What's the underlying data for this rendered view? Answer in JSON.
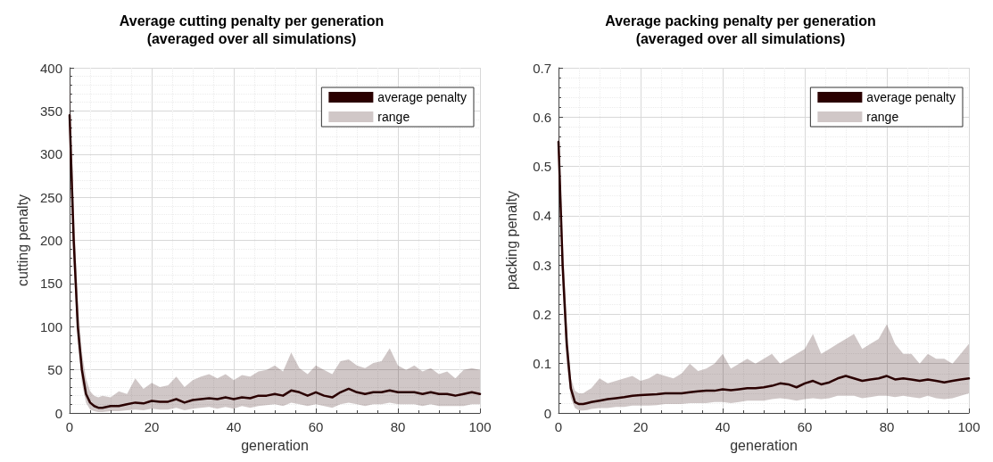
{
  "chart_data": [
    {
      "type": "line",
      "title": "Average cutting penalty per generation\n(averaged over all simulations)",
      "xlabel": "generation",
      "ylabel": "cutting penalty",
      "xlim": [
        0,
        100
      ],
      "xticks": [
        0,
        20,
        40,
        60,
        80,
        100
      ],
      "ylim": [
        0,
        400
      ],
      "yticks": [
        0,
        50,
        100,
        150,
        200,
        250,
        300,
        350,
        400
      ],
      "grid": true,
      "legend": "top right",
      "line_style": "solid",
      "marker": "none",
      "annotations": [
        "range"
      ],
      "x": [
        0,
        1,
        2,
        3,
        4,
        5,
        6,
        7,
        8,
        10,
        12,
        14,
        16,
        18,
        20,
        22,
        24,
        26,
        28,
        30,
        32,
        34,
        36,
        38,
        40,
        42,
        44,
        46,
        48,
        50,
        52,
        54,
        56,
        58,
        60,
        62,
        64,
        66,
        68,
        70,
        72,
        74,
        76,
        78,
        80,
        82,
        84,
        86,
        88,
        90,
        92,
        94,
        96,
        98,
        100
      ],
      "series": [
        {
          "name": "average penalty",
          "type": "line",
          "color": "#2a0000",
          "values": [
            345,
            200,
            100,
            50,
            22,
            12,
            8,
            6,
            6,
            8,
            8,
            10,
            12,
            11,
            14,
            13,
            13,
            16,
            12,
            15,
            16,
            17,
            16,
            18,
            16,
            18,
            17,
            20,
            20,
            22,
            20,
            26,
            24,
            20,
            24,
            20,
            18,
            24,
            28,
            24,
            22,
            24,
            24,
            26,
            24,
            24,
            24,
            22,
            24,
            22,
            22,
            20,
            22,
            24,
            22
          ],
          "lower": [
            300,
            170,
            80,
            35,
            12,
            4,
            2,
            1,
            1,
            2,
            2,
            3,
            4,
            3,
            5,
            4,
            4,
            6,
            3,
            5,
            6,
            7,
            5,
            7,
            5,
            8,
            6,
            8,
            9,
            10,
            8,
            12,
            10,
            8,
            10,
            8,
            6,
            10,
            12,
            10,
            8,
            10,
            10,
            12,
            10,
            10,
            10,
            8,
            10,
            8,
            8,
            8,
            8,
            10,
            10
          ],
          "upper": [
            398,
            240,
            130,
            70,
            40,
            25,
            20,
            18,
            20,
            18,
            25,
            22,
            40,
            28,
            35,
            30,
            32,
            42,
            30,
            38,
            42,
            45,
            40,
            45,
            38,
            44,
            42,
            48,
            50,
            55,
            48,
            70,
            52,
            45,
            55,
            50,
            45,
            60,
            62,
            55,
            52,
            58,
            60,
            75,
            55,
            50,
            55,
            48,
            52,
            45,
            48,
            40,
            50,
            52,
            50
          ]
        }
      ]
    },
    {
      "type": "line",
      "title": "Average packing penalty per generation\n(averaged over all simulations)",
      "xlabel": "generation",
      "ylabel": "packing penalty",
      "xlim": [
        0,
        100
      ],
      "xticks": [
        0,
        20,
        40,
        60,
        80,
        100
      ],
      "ylim": [
        0,
        0.7
      ],
      "yticks": [
        0,
        0.1,
        0.2,
        0.3,
        0.4,
        0.5,
        0.6,
        0.7
      ],
      "grid": true,
      "legend": "top right",
      "line_style": "solid",
      "marker": "none",
      "annotations": [
        "range"
      ],
      "x": [
        0,
        1,
        2,
        3,
        4,
        5,
        6,
        7,
        8,
        10,
        12,
        14,
        16,
        18,
        20,
        22,
        24,
        26,
        28,
        30,
        32,
        34,
        36,
        38,
        40,
        42,
        44,
        46,
        48,
        50,
        52,
        54,
        56,
        58,
        60,
        62,
        64,
        66,
        68,
        70,
        72,
        74,
        76,
        78,
        80,
        82,
        84,
        86,
        88,
        90,
        92,
        94,
        96,
        98,
        100
      ],
      "series": [
        {
          "name": "average penalty",
          "type": "line",
          "color": "#2a0000",
          "values": [
            0.55,
            0.3,
            0.14,
            0.05,
            0.022,
            0.018,
            0.018,
            0.02,
            0.022,
            0.025,
            0.028,
            0.03,
            0.032,
            0.035,
            0.036,
            0.037,
            0.038,
            0.04,
            0.04,
            0.04,
            0.042,
            0.044,
            0.045,
            0.045,
            0.048,
            0.046,
            0.048,
            0.05,
            0.05,
            0.052,
            0.055,
            0.06,
            0.058,
            0.052,
            0.06,
            0.065,
            0.058,
            0.062,
            0.07,
            0.075,
            0.07,
            0.065,
            0.068,
            0.07,
            0.075,
            0.068,
            0.07,
            0.068,
            0.065,
            0.068,
            0.065,
            0.062,
            0.065,
            0.068,
            0.07
          ],
          "lower": [
            0.5,
            0.25,
            0.1,
            0.03,
            0.01,
            0.005,
            0.005,
            0.006,
            0.008,
            0.01,
            0.01,
            0.012,
            0.012,
            0.015,
            0.015,
            0.015,
            0.016,
            0.018,
            0.018,
            0.018,
            0.02,
            0.02,
            0.02,
            0.022,
            0.022,
            0.02,
            0.022,
            0.025,
            0.025,
            0.025,
            0.028,
            0.03,
            0.028,
            0.025,
            0.028,
            0.03,
            0.028,
            0.03,
            0.035,
            0.035,
            0.035,
            0.03,
            0.032,
            0.035,
            0.035,
            0.032,
            0.035,
            0.032,
            0.03,
            0.035,
            0.03,
            0.028,
            0.03,
            0.035,
            0.04
          ],
          "upper": [
            0.6,
            0.36,
            0.18,
            0.07,
            0.045,
            0.04,
            0.04,
            0.045,
            0.05,
            0.07,
            0.06,
            0.065,
            0.07,
            0.075,
            0.065,
            0.07,
            0.08,
            0.075,
            0.07,
            0.08,
            0.1,
            0.085,
            0.09,
            0.1,
            0.12,
            0.09,
            0.1,
            0.11,
            0.1,
            0.11,
            0.12,
            0.1,
            0.11,
            0.12,
            0.13,
            0.16,
            0.12,
            0.13,
            0.14,
            0.15,
            0.16,
            0.13,
            0.14,
            0.15,
            0.18,
            0.14,
            0.12,
            0.12,
            0.1,
            0.12,
            0.11,
            0.11,
            0.1,
            0.12,
            0.14
          ]
        }
      ]
    }
  ]
}
